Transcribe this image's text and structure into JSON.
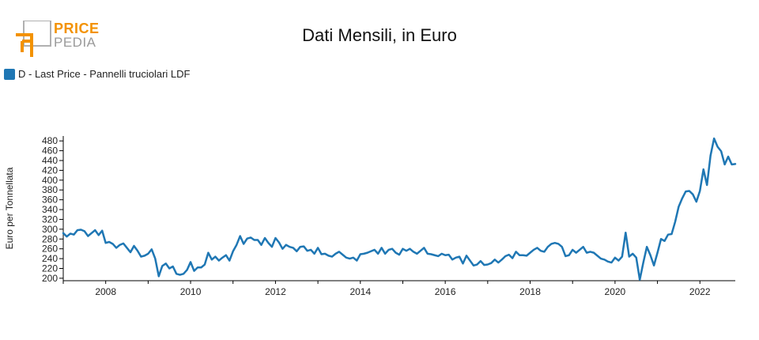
{
  "logo": {
    "line1": "PRICE",
    "line2": "PEDIA"
  },
  "colors": {
    "series": "#1f77b4",
    "logo_orange": "#f39200",
    "logo_gray": "#9a9a9a"
  },
  "chart_data": {
    "type": "line",
    "title": "Dati Mensili, in Euro",
    "xlabel": "",
    "ylabel": "Euro per Tonnellata",
    "ylim": [
      195,
      490
    ],
    "xlim": [
      "2007-01",
      "2022-11"
    ],
    "yticks": [
      200,
      220,
      240,
      260,
      280,
      300,
      320,
      340,
      360,
      380,
      400,
      420,
      440,
      460,
      480
    ],
    "xticks": [
      "2008",
      "2010",
      "2012",
      "2014",
      "2016",
      "2018",
      "2020",
      "2022"
    ],
    "legend": "top-left",
    "grid": false,
    "series": [
      {
        "name": "D - Last Price - Pannelli truciolari LDF",
        "x": [
          "2007-01",
          "2007-02",
          "2007-03",
          "2007-04",
          "2007-05",
          "2007-06",
          "2007-07",
          "2007-08",
          "2007-09",
          "2007-10",
          "2007-11",
          "2007-12",
          "2008-01",
          "2008-02",
          "2008-03",
          "2008-04",
          "2008-05",
          "2008-06",
          "2008-07",
          "2008-08",
          "2008-09",
          "2008-10",
          "2008-11",
          "2008-12",
          "2009-01",
          "2009-02",
          "2009-03",
          "2009-04",
          "2009-05",
          "2009-06",
          "2009-07",
          "2009-08",
          "2009-09",
          "2009-10",
          "2009-11",
          "2009-12",
          "2010-01",
          "2010-02",
          "2010-03",
          "2010-04",
          "2010-05",
          "2010-06",
          "2010-07",
          "2010-08",
          "2010-09",
          "2010-10",
          "2010-11",
          "2010-12",
          "2011-01",
          "2011-02",
          "2011-03",
          "2011-04",
          "2011-05",
          "2011-06",
          "2011-07",
          "2011-08",
          "2011-09",
          "2011-10",
          "2011-11",
          "2011-12",
          "2012-01",
          "2012-02",
          "2012-03",
          "2012-04",
          "2012-05",
          "2012-06",
          "2012-07",
          "2012-08",
          "2012-09",
          "2012-10",
          "2012-11",
          "2012-12",
          "2013-01",
          "2013-02",
          "2013-03",
          "2013-04",
          "2013-05",
          "2013-06",
          "2013-07",
          "2013-08",
          "2013-09",
          "2013-10",
          "2013-11",
          "2013-12",
          "2014-01",
          "2014-02",
          "2014-03",
          "2014-04",
          "2014-05",
          "2014-06",
          "2014-07",
          "2014-08",
          "2014-09",
          "2014-10",
          "2014-11",
          "2014-12",
          "2015-01",
          "2015-02",
          "2015-03",
          "2015-04",
          "2015-05",
          "2015-06",
          "2015-07",
          "2015-08",
          "2015-09",
          "2015-10",
          "2015-11",
          "2015-12",
          "2016-01",
          "2016-02",
          "2016-03",
          "2016-04",
          "2016-05",
          "2016-06",
          "2016-07",
          "2016-08",
          "2016-09",
          "2016-10",
          "2016-11",
          "2016-12",
          "2017-01",
          "2017-02",
          "2017-03",
          "2017-04",
          "2017-05",
          "2017-06",
          "2017-07",
          "2017-08",
          "2017-09",
          "2017-10",
          "2017-11",
          "2017-12",
          "2018-01",
          "2018-02",
          "2018-03",
          "2018-04",
          "2018-05",
          "2018-06",
          "2018-07",
          "2018-08",
          "2018-09",
          "2018-10",
          "2018-11",
          "2018-12",
          "2019-01",
          "2019-02",
          "2019-03",
          "2019-04",
          "2019-05",
          "2019-06",
          "2019-07",
          "2019-08",
          "2019-09",
          "2019-10",
          "2019-11",
          "2019-12",
          "2020-01",
          "2020-02",
          "2020-03",
          "2020-04",
          "2020-05",
          "2020-06",
          "2020-07",
          "2020-08",
          "2020-09",
          "2020-10",
          "2020-11",
          "2020-12",
          "2021-01",
          "2021-02",
          "2021-03",
          "2021-04",
          "2021-05",
          "2021-06",
          "2021-07",
          "2021-08",
          "2021-09",
          "2021-10",
          "2021-11",
          "2021-12",
          "2022-01",
          "2022-02",
          "2022-03",
          "2022-04",
          "2022-05",
          "2022-06",
          "2022-07",
          "2022-08",
          "2022-09",
          "2022-10",
          "2022-11"
        ],
        "values": [
          292,
          285,
          291,
          289,
          298,
          299,
          296,
          286,
          292,
          298,
          288,
          297,
          272,
          274,
          270,
          262,
          268,
          271,
          262,
          253,
          266,
          256,
          244,
          246,
          250,
          259,
          240,
          204,
          225,
          230,
          220,
          224,
          209,
          207,
          209,
          217,
          233,
          215,
          222,
          222,
          228,
          252,
          238,
          244,
          236,
          242,
          247,
          236,
          255,
          268,
          286,
          270,
          281,
          283,
          278,
          278,
          268,
          282,
          272,
          264,
          282,
          273,
          260,
          268,
          264,
          262,
          255,
          264,
          265,
          256,
          258,
          250,
          262,
          249,
          250,
          246,
          244,
          250,
          254,
          248,
          242,
          240,
          242,
          236,
          249,
          250,
          252,
          255,
          258,
          250,
          262,
          250,
          258,
          260,
          252,
          248,
          260,
          256,
          260,
          254,
          250,
          256,
          262,
          250,
          249,
          247,
          245,
          250,
          247,
          248,
          238,
          242,
          244,
          230,
          246,
          236,
          226,
          228,
          235,
          227,
          228,
          231,
          238,
          232,
          238,
          245,
          248,
          241,
          254,
          247,
          247,
          246,
          252,
          258,
          262,
          256,
          254,
          264,
          270,
          272,
          270,
          264,
          245,
          247,
          258,
          252,
          258,
          264,
          252,
          254,
          252,
          246,
          240,
          238,
          234,
          232,
          242,
          236,
          244,
          293,
          244,
          250,
          242,
          197,
          232,
          264,
          247,
          226,
          252,
          280,
          276,
          289,
          290,
          315,
          346,
          363,
          377,
          378,
          371,
          356,
          378,
          422,
          390,
          450,
          485,
          468,
          459,
          432,
          448,
          432,
          433
        ]
      }
    ]
  }
}
